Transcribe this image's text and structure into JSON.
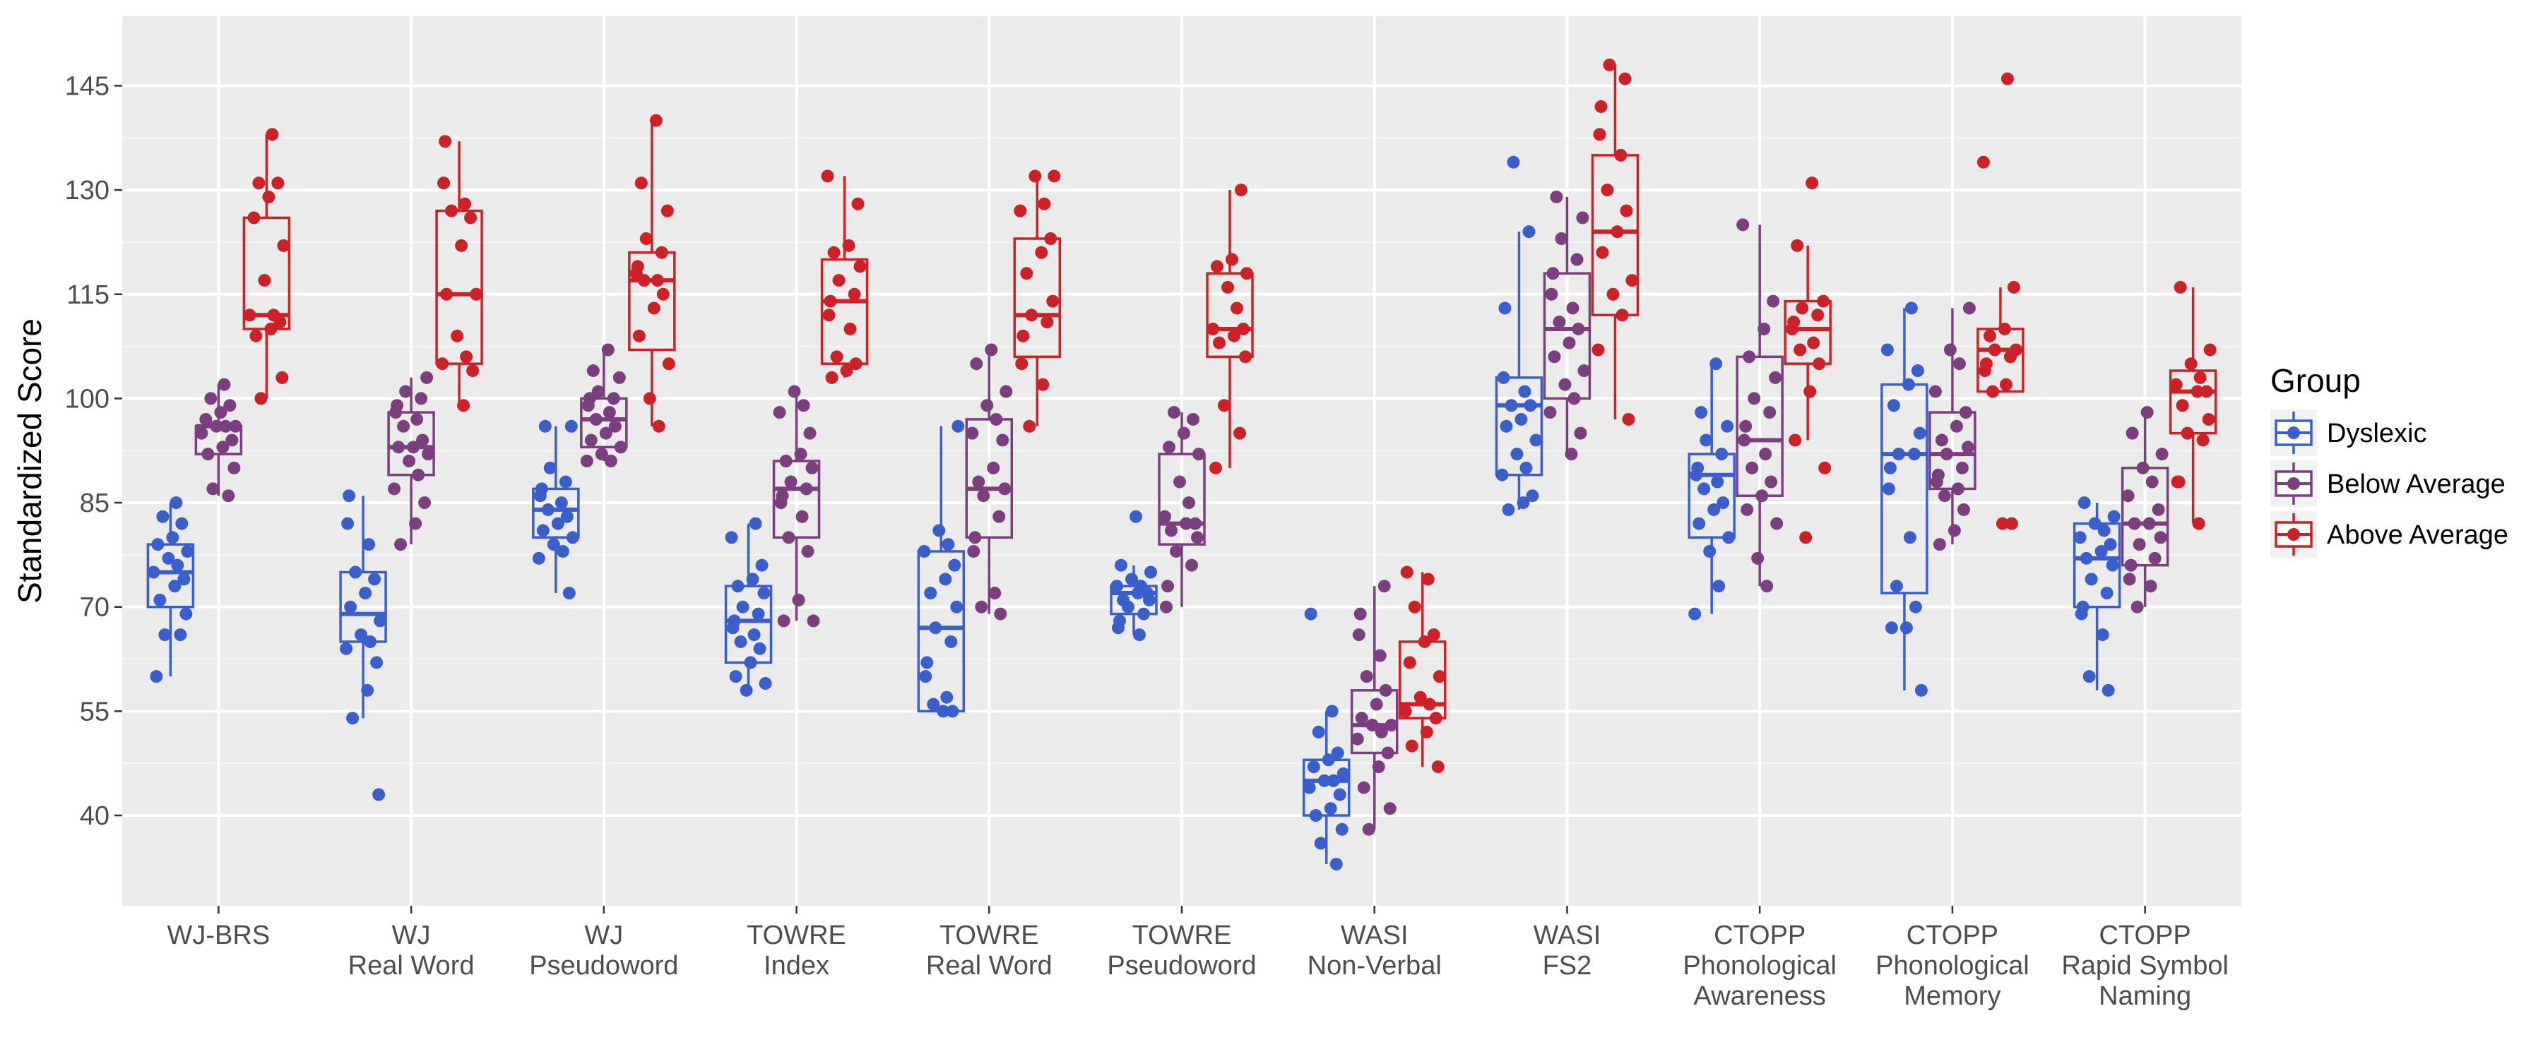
{
  "chart_data": {
    "type": "boxplot",
    "ylabel": "Standardized Score",
    "ylim": [
      27,
      155
    ],
    "yticks": [
      40,
      55,
      70,
      85,
      100,
      115,
      130,
      145
    ],
    "grid": true,
    "legend_position": "right",
    "legend_title": "Group",
    "categories": [
      [
        "WJ-BRS"
      ],
      [
        "WJ",
        "Real Word"
      ],
      [
        "WJ",
        "Pseudoword"
      ],
      [
        "TOWRE",
        "Index"
      ],
      [
        "TOWRE",
        "Real Word"
      ],
      [
        "TOWRE",
        "Pseudoword"
      ],
      [
        "WASI",
        "Non-Verbal"
      ],
      [
        "WASI",
        "FS2"
      ],
      [
        "CTOPP",
        "Phonological",
        "Awareness"
      ],
      [
        "CTOPP",
        "Phonological",
        "Memory"
      ],
      [
        "CTOPP",
        "Rapid Symbol",
        "Naming"
      ]
    ],
    "series": [
      {
        "name": "Dyslexic",
        "color": "#3a5fcd",
        "boxes": [
          {
            "whislo": 60,
            "q1": 70,
            "med": 75,
            "q3": 79,
            "whishi": 85
          },
          {
            "whislo": 54,
            "q1": 65,
            "med": 69,
            "q3": 75,
            "whishi": 86,
            "outliers": [
              43
            ]
          },
          {
            "whislo": 72,
            "q1": 80,
            "med": 84,
            "q3": 87,
            "whishi": 96
          },
          {
            "whislo": 58,
            "q1": 62,
            "med": 68,
            "q3": 73,
            "whishi": 82
          },
          {
            "whislo": 55,
            "q1": 55,
            "med": 67,
            "q3": 78,
            "whishi": 96
          },
          {
            "whislo": 66,
            "q1": 69,
            "med": 72,
            "q3": 73,
            "whishi": 76,
            "outliers": [
              83
            ]
          },
          {
            "whislo": 33,
            "q1": 40,
            "med": 45,
            "q3": 48,
            "whishi": 55,
            "outliers": [
              69
            ]
          },
          {
            "whislo": 84,
            "q1": 89,
            "med": 99,
            "q3": 103,
            "whishi": 124,
            "outliers": [
              134
            ]
          },
          {
            "whislo": 69,
            "q1": 80,
            "med": 89,
            "q3": 92,
            "whishi": 105
          },
          {
            "whislo": 58,
            "q1": 72,
            "med": 92,
            "q3": 102,
            "whishi": 113
          },
          {
            "whislo": 58,
            "q1": 70,
            "med": 77,
            "q3": 82,
            "whishi": 85
          }
        ],
        "points": [
          [
            60,
            66,
            66,
            69,
            71,
            73,
            74,
            75,
            76,
            77,
            78,
            79,
            80,
            82,
            83,
            85
          ],
          [
            43,
            54,
            58,
            62,
            64,
            65,
            66,
            68,
            70,
            72,
            74,
            75,
            79,
            82,
            86
          ],
          [
            72,
            77,
            78,
            79,
            80,
            81,
            82,
            83,
            84,
            85,
            86,
            87,
            88,
            90,
            96,
            96
          ],
          [
            58,
            59,
            60,
            62,
            64,
            65,
            66,
            67,
            68,
            69,
            70,
            72,
            73,
            74,
            76,
            80,
            82
          ],
          [
            55,
            55,
            56,
            57,
            60,
            62,
            65,
            67,
            70,
            72,
            74,
            76,
            78,
            79,
            81,
            96
          ],
          [
            66,
            67,
            68,
            69,
            70,
            71,
            71,
            72,
            72,
            73,
            73,
            74,
            75,
            76,
            83
          ],
          [
            33,
            36,
            38,
            40,
            41,
            43,
            44,
            45,
            45,
            46,
            47,
            48,
            49,
            52,
            55,
            69
          ],
          [
            84,
            85,
            86,
            89,
            90,
            92,
            94,
            96,
            97,
            99,
            99,
            101,
            103,
            113,
            124,
            134
          ],
          [
            69,
            73,
            78,
            80,
            82,
            84,
            85,
            87,
            88,
            89,
            90,
            92,
            94,
            96,
            98,
            105
          ],
          [
            58,
            67,
            67,
            70,
            73,
            80,
            87,
            90,
            92,
            92,
            95,
            99,
            102,
            104,
            107,
            113
          ],
          [
            58,
            60,
            66,
            69,
            70,
            72,
            74,
            76,
            77,
            78,
            79,
            80,
            81,
            82,
            83,
            85
          ]
        ]
      },
      {
        "name": "Below Average",
        "color": "#7b3f7f",
        "boxes": [
          {
            "whislo": 86,
            "q1": 92,
            "med": 96,
            "q3": 96,
            "whishi": 102
          },
          {
            "whislo": 79,
            "q1": 89,
            "med": 93,
            "q3": 98,
            "whishi": 103
          },
          {
            "whislo": 91,
            "q1": 93,
            "med": 97,
            "q3": 100,
            "whishi": 107
          },
          {
            "whislo": 68,
            "q1": 80,
            "med": 87,
            "q3": 91,
            "whishi": 101
          },
          {
            "whislo": 69,
            "q1": 80,
            "med": 87,
            "q3": 97,
            "whishi": 107
          },
          {
            "whislo": 70,
            "q1": 79,
            "med": 82,
            "q3": 92,
            "whishi": 98
          },
          {
            "whislo": 38,
            "q1": 49,
            "med": 53,
            "q3": 58,
            "whishi": 73
          },
          {
            "whislo": 92,
            "q1": 100,
            "med": 110,
            "q3": 118,
            "whishi": 129
          },
          {
            "whislo": 73,
            "q1": 86,
            "med": 94,
            "q3": 106,
            "whishi": 125
          },
          {
            "whislo": 79,
            "q1": 87,
            "med": 92,
            "q3": 98,
            "whishi": 113
          },
          {
            "whislo": 70,
            "q1": 76,
            "med": 82,
            "q3": 90,
            "whishi": 98
          }
        ],
        "points": [
          [
            86,
            87,
            90,
            92,
            93,
            94,
            95,
            96,
            96,
            96,
            97,
            98,
            99,
            100,
            102
          ],
          [
            79,
            82,
            85,
            87,
            89,
            91,
            92,
            93,
            93,
            94,
            96,
            97,
            98,
            99,
            100,
            101,
            103
          ],
          [
            91,
            91,
            92,
            93,
            94,
            95,
            96,
            97,
            98,
            99,
            100,
            100,
            101,
            103,
            104,
            107
          ],
          [
            68,
            68,
            71,
            78,
            80,
            83,
            85,
            86,
            87,
            88,
            90,
            91,
            92,
            95,
            98,
            99,
            101
          ],
          [
            69,
            70,
            72,
            78,
            80,
            83,
            86,
            87,
            88,
            90,
            94,
            95,
            97,
            99,
            101,
            105,
            107
          ],
          [
            70,
            73,
            76,
            78,
            80,
            81,
            82,
            82,
            83,
            85,
            88,
            92,
            93,
            95,
            97,
            98
          ],
          [
            38,
            41,
            44,
            47,
            49,
            51,
            52,
            53,
            53,
            54,
            56,
            58,
            60,
            63,
            66,
            69,
            73
          ],
          [
            92,
            95,
            98,
            100,
            102,
            104,
            106,
            108,
            110,
            111,
            113,
            115,
            118,
            120,
            123,
            126,
            129
          ],
          [
            73,
            77,
            82,
            84,
            86,
            88,
            90,
            92,
            94,
            96,
            98,
            100,
            103,
            106,
            110,
            114,
            125
          ],
          [
            79,
            81,
            84,
            86,
            87,
            88,
            89,
            90,
            92,
            93,
            94,
            96,
            98,
            101,
            105,
            107,
            113
          ],
          [
            70,
            73,
            74,
            76,
            77,
            79,
            80,
            82,
            82,
            84,
            86,
            88,
            90,
            92,
            95,
            98
          ]
        ]
      },
      {
        "name": "Above Average",
        "color": "#cc2127",
        "boxes": [
          {
            "whislo": 100,
            "q1": 110,
            "med": 112,
            "q3": 126,
            "whishi": 138
          },
          {
            "whislo": 99,
            "q1": 105,
            "med": 115,
            "q3": 127,
            "whishi": 137
          },
          {
            "whislo": 96,
            "q1": 107,
            "med": 117,
            "q3": 121,
            "whishi": 140
          },
          {
            "whislo": 103,
            "q1": 105,
            "med": 114,
            "q3": 120,
            "whishi": 132
          },
          {
            "whislo": 96,
            "q1": 106,
            "med": 112,
            "q3": 123,
            "whishi": 132
          },
          {
            "whislo": 90,
            "q1": 106,
            "med": 110,
            "q3": 118,
            "whishi": 130
          },
          {
            "whislo": 47,
            "q1": 54,
            "med": 56,
            "q3": 65,
            "whishi": 75
          },
          {
            "whislo": 97,
            "q1": 112,
            "med": 124,
            "q3": 135,
            "whishi": 148
          },
          {
            "whislo": 94,
            "q1": 105,
            "med": 110,
            "q3": 114,
            "whishi": 122,
            "outliers": [
              80,
              131
            ]
          },
          {
            "whislo": 101,
            "q1": 101,
            "med": 107,
            "q3": 110,
            "whishi": 116,
            "outliers": [
              82,
              82,
              134,
              146
            ]
          },
          {
            "whislo": 82,
            "q1": 95,
            "med": 101,
            "q3": 104,
            "whishi": 116
          }
        ],
        "points": [
          [
            100,
            103,
            109,
            110,
            111,
            112,
            112,
            117,
            122,
            126,
            129,
            131,
            131,
            138
          ],
          [
            99,
            104,
            105,
            106,
            109,
            115,
            115,
            122,
            126,
            127,
            128,
            131,
            137
          ],
          [
            96,
            100,
            105,
            109,
            113,
            115,
            117,
            117,
            118,
            119,
            121,
            123,
            127,
            131,
            140
          ],
          [
            103,
            104,
            105,
            106,
            110,
            112,
            114,
            115,
            117,
            119,
            121,
            122,
            128,
            132
          ],
          [
            96,
            102,
            105,
            109,
            111,
            112,
            114,
            118,
            121,
            123,
            127,
            128,
            132,
            132
          ],
          [
            90,
            95,
            99,
            106,
            108,
            109,
            110,
            110,
            113,
            116,
            118,
            119,
            120,
            130
          ],
          [
            47,
            50,
            52,
            54,
            55,
            56,
            57,
            60,
            62,
            65,
            66,
            70,
            74,
            75
          ],
          [
            97,
            107,
            112,
            115,
            117,
            121,
            124,
            127,
            130,
            135,
            138,
            142,
            146,
            148
          ],
          [
            80,
            90,
            94,
            101,
            105,
            107,
            108,
            110,
            111,
            112,
            113,
            114,
            122,
            131
          ],
          [
            82,
            82,
            101,
            102,
            104,
            105,
            106,
            107,
            107,
            109,
            110,
            116,
            134,
            146
          ],
          [
            82,
            88,
            88,
            94,
            95,
            97,
            99,
            101,
            101,
            102,
            103,
            105,
            107,
            116
          ]
        ]
      }
    ]
  }
}
